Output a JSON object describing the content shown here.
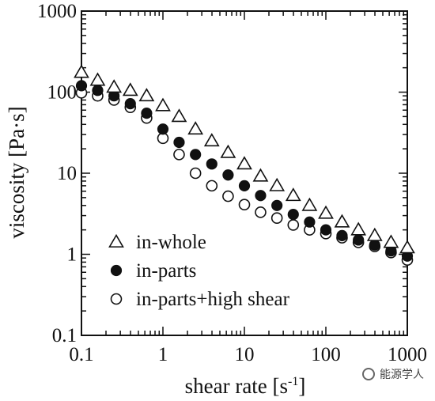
{
  "chart_data": {
    "type": "scatter",
    "title": "",
    "xlabel": "shear rate [s",
    "xlabel_sup": "-1",
    "xlabel_end": "]",
    "ylabel": "viscosity [Pa·s]",
    "xscale": "log",
    "yscale": "log",
    "xlim": [
      0.1,
      1000
    ],
    "ylim": [
      0.1,
      1000
    ],
    "x_ticks": [
      "0.1",
      "1",
      "10",
      "100",
      "1000"
    ],
    "y_ticks": [
      "0.1",
      "1",
      "10",
      "100",
      "1000"
    ],
    "grid": false,
    "legend_position": "bottom-left",
    "series": [
      {
        "name": "in-whole",
        "marker": "open-triangle",
        "x": [
          0.1,
          0.158,
          0.251,
          0.398,
          0.631,
          1.0,
          1.58,
          2.51,
          3.98,
          6.31,
          10.0,
          15.8,
          25.1,
          39.8,
          63.1,
          100,
          158,
          251,
          398,
          631,
          1000
        ],
        "y": [
          175,
          140,
          115,
          105,
          90,
          68,
          50,
          35,
          25,
          18,
          13,
          9.2,
          7.0,
          5.3,
          4.0,
          3.2,
          2.5,
          2.0,
          1.7,
          1.4,
          1.2
        ]
      },
      {
        "name": "in-parts",
        "marker": "filled-circle",
        "x": [
          0.1,
          0.158,
          0.251,
          0.398,
          0.631,
          1.0,
          1.58,
          2.51,
          3.98,
          6.31,
          10.0,
          15.8,
          25.1,
          39.8,
          63.1,
          100,
          158,
          251,
          398,
          631,
          1000
        ],
        "y": [
          120,
          105,
          90,
          72,
          55,
          35,
          24,
          17,
          13,
          9.5,
          7.0,
          5.3,
          4.0,
          3.1,
          2.5,
          2.0,
          1.7,
          1.5,
          1.3,
          1.1,
          0.95
        ]
      },
      {
        "name": "in-parts+high shear",
        "marker": "open-circle",
        "x": [
          0.1,
          0.158,
          0.251,
          0.398,
          0.631,
          1.0,
          1.58,
          2.51,
          3.98,
          6.31,
          10.0,
          15.8,
          25.1,
          39.8,
          63.1,
          100,
          158,
          251,
          398,
          631,
          1000
        ],
        "y": [
          98,
          90,
          80,
          65,
          48,
          27,
          17,
          10,
          7.0,
          5.2,
          4.1,
          3.3,
          2.8,
          2.3,
          2.0,
          1.8,
          1.6,
          1.4,
          1.25,
          1.05,
          0.85
        ]
      }
    ]
  },
  "watermark": {
    "text": "能源学人",
    "icon": "wechat-icon"
  }
}
